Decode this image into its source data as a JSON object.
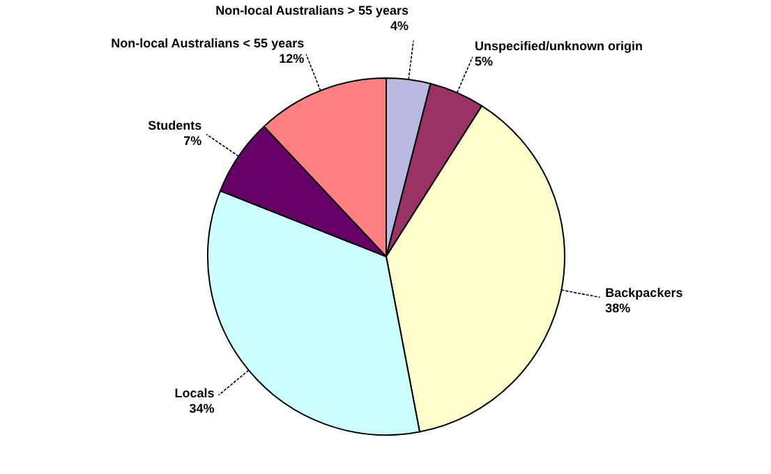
{
  "chart_data": {
    "type": "pie",
    "categories": [
      "Non-local Australians > 55 years",
      "Unspecified/unknown origin",
      "Backpackers",
      "Locals",
      "Students",
      "Non-local Australians < 55 years"
    ],
    "values": [
      4,
      5,
      38,
      34,
      7,
      12
    ],
    "value_labels": [
      "4%",
      "5%",
      "38%",
      "34%",
      "7%",
      "12%"
    ],
    "colors": [
      "#b8b8e0",
      "#993366",
      "#ffffcc",
      "#ccffff",
      "#660066",
      "#ff8080"
    ]
  }
}
